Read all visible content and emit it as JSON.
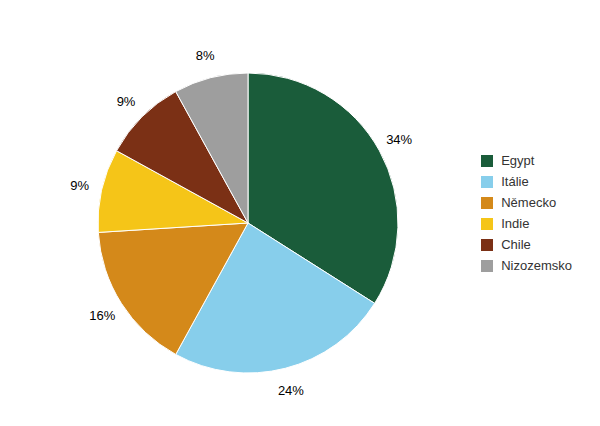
{
  "chart_data": {
    "type": "pie",
    "categories": [
      "Egypt",
      "Itálie",
      "Německo",
      "Indie",
      "Chile",
      "Nizozemsko"
    ],
    "values": [
      34,
      24,
      16,
      9,
      9,
      8
    ],
    "value_labels": [
      "34%",
      "24%",
      "16%",
      "9%",
      "9%",
      "8%"
    ],
    "colors": [
      "#1a5c3a",
      "#87ceeb",
      "#d4891a",
      "#f5c518",
      "#7b3015",
      "#9e9e9e"
    ],
    "data_labels": true,
    "legend": "right"
  }
}
